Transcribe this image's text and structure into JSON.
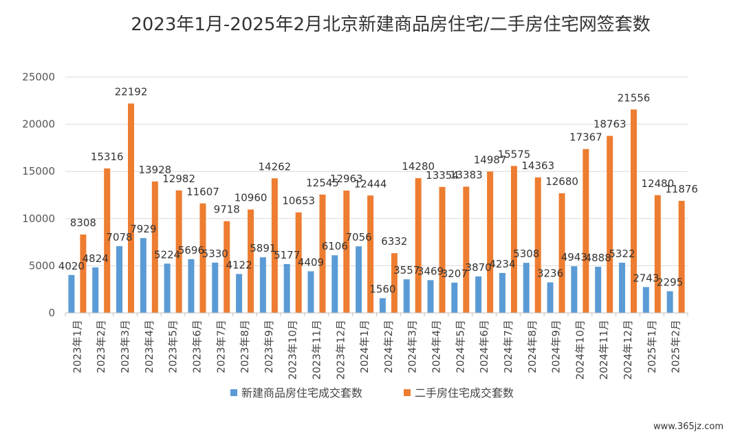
{
  "footer_url": "www.365jz.com",
  "chart_data": {
    "type": "bar",
    "title": "2023年1月-2025年2月北京新建商品房住宅/二手房住宅网签套数",
    "xlabel": "",
    "ylabel": "",
    "ylim": [
      0,
      25000
    ],
    "yticks": [
      0,
      5000,
      10000,
      15000,
      20000,
      25000
    ],
    "grid": true,
    "legend_position": "bottom",
    "categories": [
      "2023年1月",
      "2023年2月",
      "2023年3月",
      "2023年4月",
      "2023年5月",
      "2023年6月",
      "2023年7月",
      "2023年8月",
      "2023年9月",
      "2023年10月",
      "2023年11月",
      "2023年12月",
      "2024年1月",
      "2024年2月",
      "2024年3月",
      "2024年4月",
      "2024年5月",
      "2024年6月",
      "2024年7月",
      "2024年8月",
      "2024年9月",
      "2024年10月",
      "2024年11月",
      "2024年12月",
      "2025年1月",
      "2025年2月"
    ],
    "series": [
      {
        "name": "新建商品房住宅成交套数",
        "color": "#5b9bd5",
        "values": [
          4020,
          4824,
          7078,
          7929,
          5224,
          5696,
          5330,
          4122,
          5891,
          5177,
          4409,
          6106,
          7056,
          1560,
          3557,
          3469,
          3207,
          3870,
          4234,
          5308,
          3236,
          4943,
          4888,
          5322,
          2743,
          2295
        ]
      },
      {
        "name": "二手房住宅成交套数",
        "color": "#ed7d31",
        "values": [
          8308,
          15316,
          22192,
          13928,
          12982,
          11607,
          9718,
          10960,
          14262,
          10653,
          12545,
          12963,
          12444,
          6332,
          14280,
          13354,
          13383,
          14987,
          15575,
          14363,
          12680,
          17367,
          18763,
          21556,
          12480,
          11876
        ]
      }
    ]
  }
}
